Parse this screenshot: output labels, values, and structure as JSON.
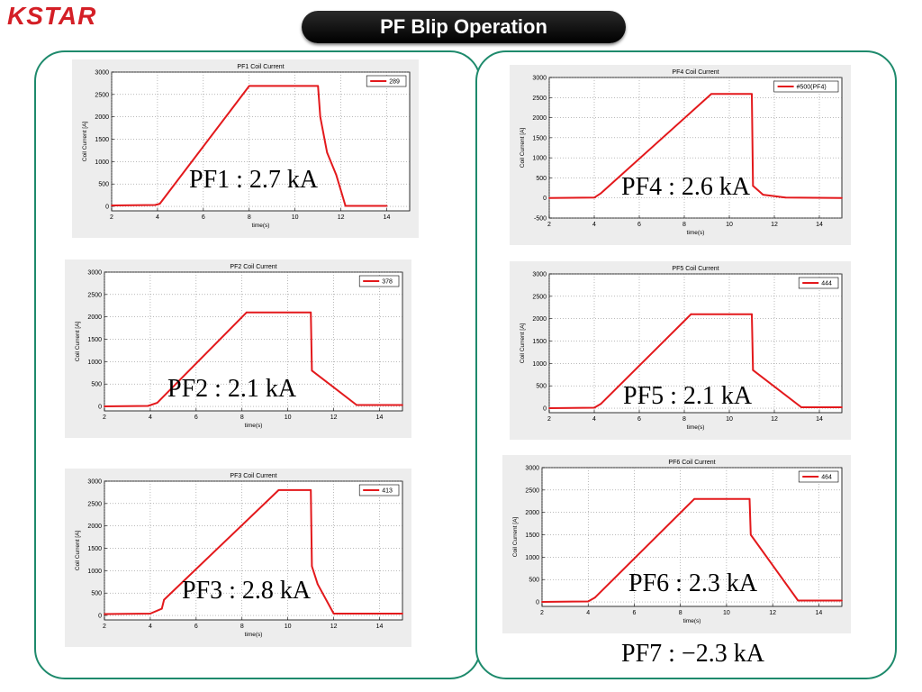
{
  "header": {
    "logo_text": "KSTAR",
    "title": "PF Blip Operation"
  },
  "colors": {
    "trace": "#e3191c",
    "panel_border": "#1e8a6c",
    "logo": "#d41f26"
  },
  "labels": {
    "pf1": "PF1 : 2.7 kA",
    "pf2": "PF2 : 2.1 kA",
    "pf3": "PF3 : 2.8 kA",
    "pf4": "PF4 : 2.6 kA",
    "pf5": "PF5 : 2.1 kA",
    "pf6": "PF6 : 2.3 kA",
    "pf7": "PF7 : −2.3 kA"
  },
  "chart_data": [
    {
      "type": "line",
      "title": "PF1 Coil Current",
      "xlabel": "time(s)",
      "ylabel": "Coil Current [A]",
      "xlim": [
        2,
        15
      ],
      "ylim": [
        -100,
        3000
      ],
      "xticks": [
        2,
        4,
        6,
        8,
        10,
        12,
        14
      ],
      "yticks": [
        0,
        500,
        1000,
        1500,
        2000,
        2500,
        3000
      ],
      "grid": true,
      "legend": "top-right",
      "series": [
        {
          "name": "289",
          "x": [
            2.0,
            3.9,
            4.1,
            8.0,
            11.0,
            11.1,
            11.4,
            11.8,
            12.2,
            14.0
          ],
          "y": [
            20,
            30,
            60,
            2690,
            2690,
            2000,
            1200,
            700,
            10,
            10
          ]
        }
      ]
    },
    {
      "type": "line",
      "title": "PF2 Coil Current",
      "xlabel": "time(s)",
      "ylabel": "Coil Current [A]",
      "xlim": [
        2,
        15
      ],
      "ylim": [
        -100,
        3000
      ],
      "xticks": [
        2,
        4,
        6,
        8,
        10,
        12,
        14
      ],
      "yticks": [
        0,
        500,
        1000,
        1500,
        2000,
        2500,
        3000
      ],
      "grid": true,
      "legend": "top-right",
      "series": [
        {
          "name": "378",
          "x": [
            2.0,
            3.9,
            4.3,
            8.2,
            11.0,
            11.05,
            13.0,
            15.0
          ],
          "y": [
            0,
            10,
            80,
            2100,
            2100,
            800,
            30,
            30
          ]
        }
      ]
    },
    {
      "type": "line",
      "title": "PF3 Coil Current",
      "xlabel": "time(s)",
      "ylabel": "Coil Current [A]",
      "xlim": [
        2,
        15
      ],
      "ylim": [
        -100,
        3000
      ],
      "xticks": [
        2,
        4,
        6,
        8,
        10,
        12,
        14
      ],
      "yticks": [
        0,
        500,
        1000,
        1500,
        2000,
        2500,
        3000
      ],
      "grid": true,
      "legend": "top-right",
      "series": [
        {
          "name": "413",
          "x": [
            2.0,
            4.0,
            4.5,
            4.6,
            9.6,
            11.0,
            11.05,
            11.3,
            12.0,
            15.0
          ],
          "y": [
            30,
            40,
            150,
            350,
            2800,
            2800,
            1100,
            700,
            40,
            40
          ]
        }
      ]
    },
    {
      "type": "line",
      "title": "PF4 Coil Current",
      "xlabel": "time(s)",
      "ylabel": "Coil Current [A]",
      "xlim": [
        2,
        15
      ],
      "ylim": [
        -500,
        3000
      ],
      "xticks": [
        2,
        4,
        6,
        8,
        10,
        12,
        14
      ],
      "yticks": [
        -500,
        0,
        500,
        1000,
        1500,
        2000,
        2500,
        3000
      ],
      "grid": true,
      "legend": "top-right",
      "series": [
        {
          "name": "#500(PF4)",
          "x": [
            2.0,
            4.0,
            4.3,
            9.2,
            11.0,
            11.05,
            11.5,
            12.5,
            15.0
          ],
          "y": [
            0,
            10,
            120,
            2590,
            2590,
            300,
            80,
            10,
            0
          ]
        }
      ]
    },
    {
      "type": "line",
      "title": "PF5 Coil Current",
      "xlabel": "time(s)",
      "ylabel": "Coil Current [A]",
      "xlim": [
        2,
        15
      ],
      "ylim": [
        -100,
        3000
      ],
      "xticks": [
        2,
        4,
        6,
        8,
        10,
        12,
        14
      ],
      "yticks": [
        0,
        500,
        1000,
        1500,
        2000,
        2500,
        3000
      ],
      "grid": true,
      "legend": "top-right",
      "series": [
        {
          "name": "444",
          "x": [
            2.0,
            4.0,
            4.3,
            8.3,
            11.0,
            11.05,
            13.2,
            15.0
          ],
          "y": [
            0,
            10,
            100,
            2100,
            2100,
            850,
            20,
            20
          ]
        }
      ]
    },
    {
      "type": "line",
      "title": "PF6 Coil Current",
      "xlabel": "time(s)",
      "ylabel": "Coil Current [A]",
      "xlim": [
        2,
        15
      ],
      "ylim": [
        -100,
        3000
      ],
      "xticks": [
        2,
        4,
        6,
        8,
        10,
        12,
        14
      ],
      "yticks": [
        0,
        500,
        1000,
        1500,
        2000,
        2500,
        3000
      ],
      "grid": true,
      "legend": "top-right",
      "series": [
        {
          "name": "464",
          "x": [
            2.0,
            4.0,
            4.3,
            8.6,
            11.0,
            11.05,
            13.1,
            15.0
          ],
          "y": [
            0,
            10,
            100,
            2300,
            2300,
            1500,
            30,
            30
          ]
        }
      ]
    }
  ]
}
